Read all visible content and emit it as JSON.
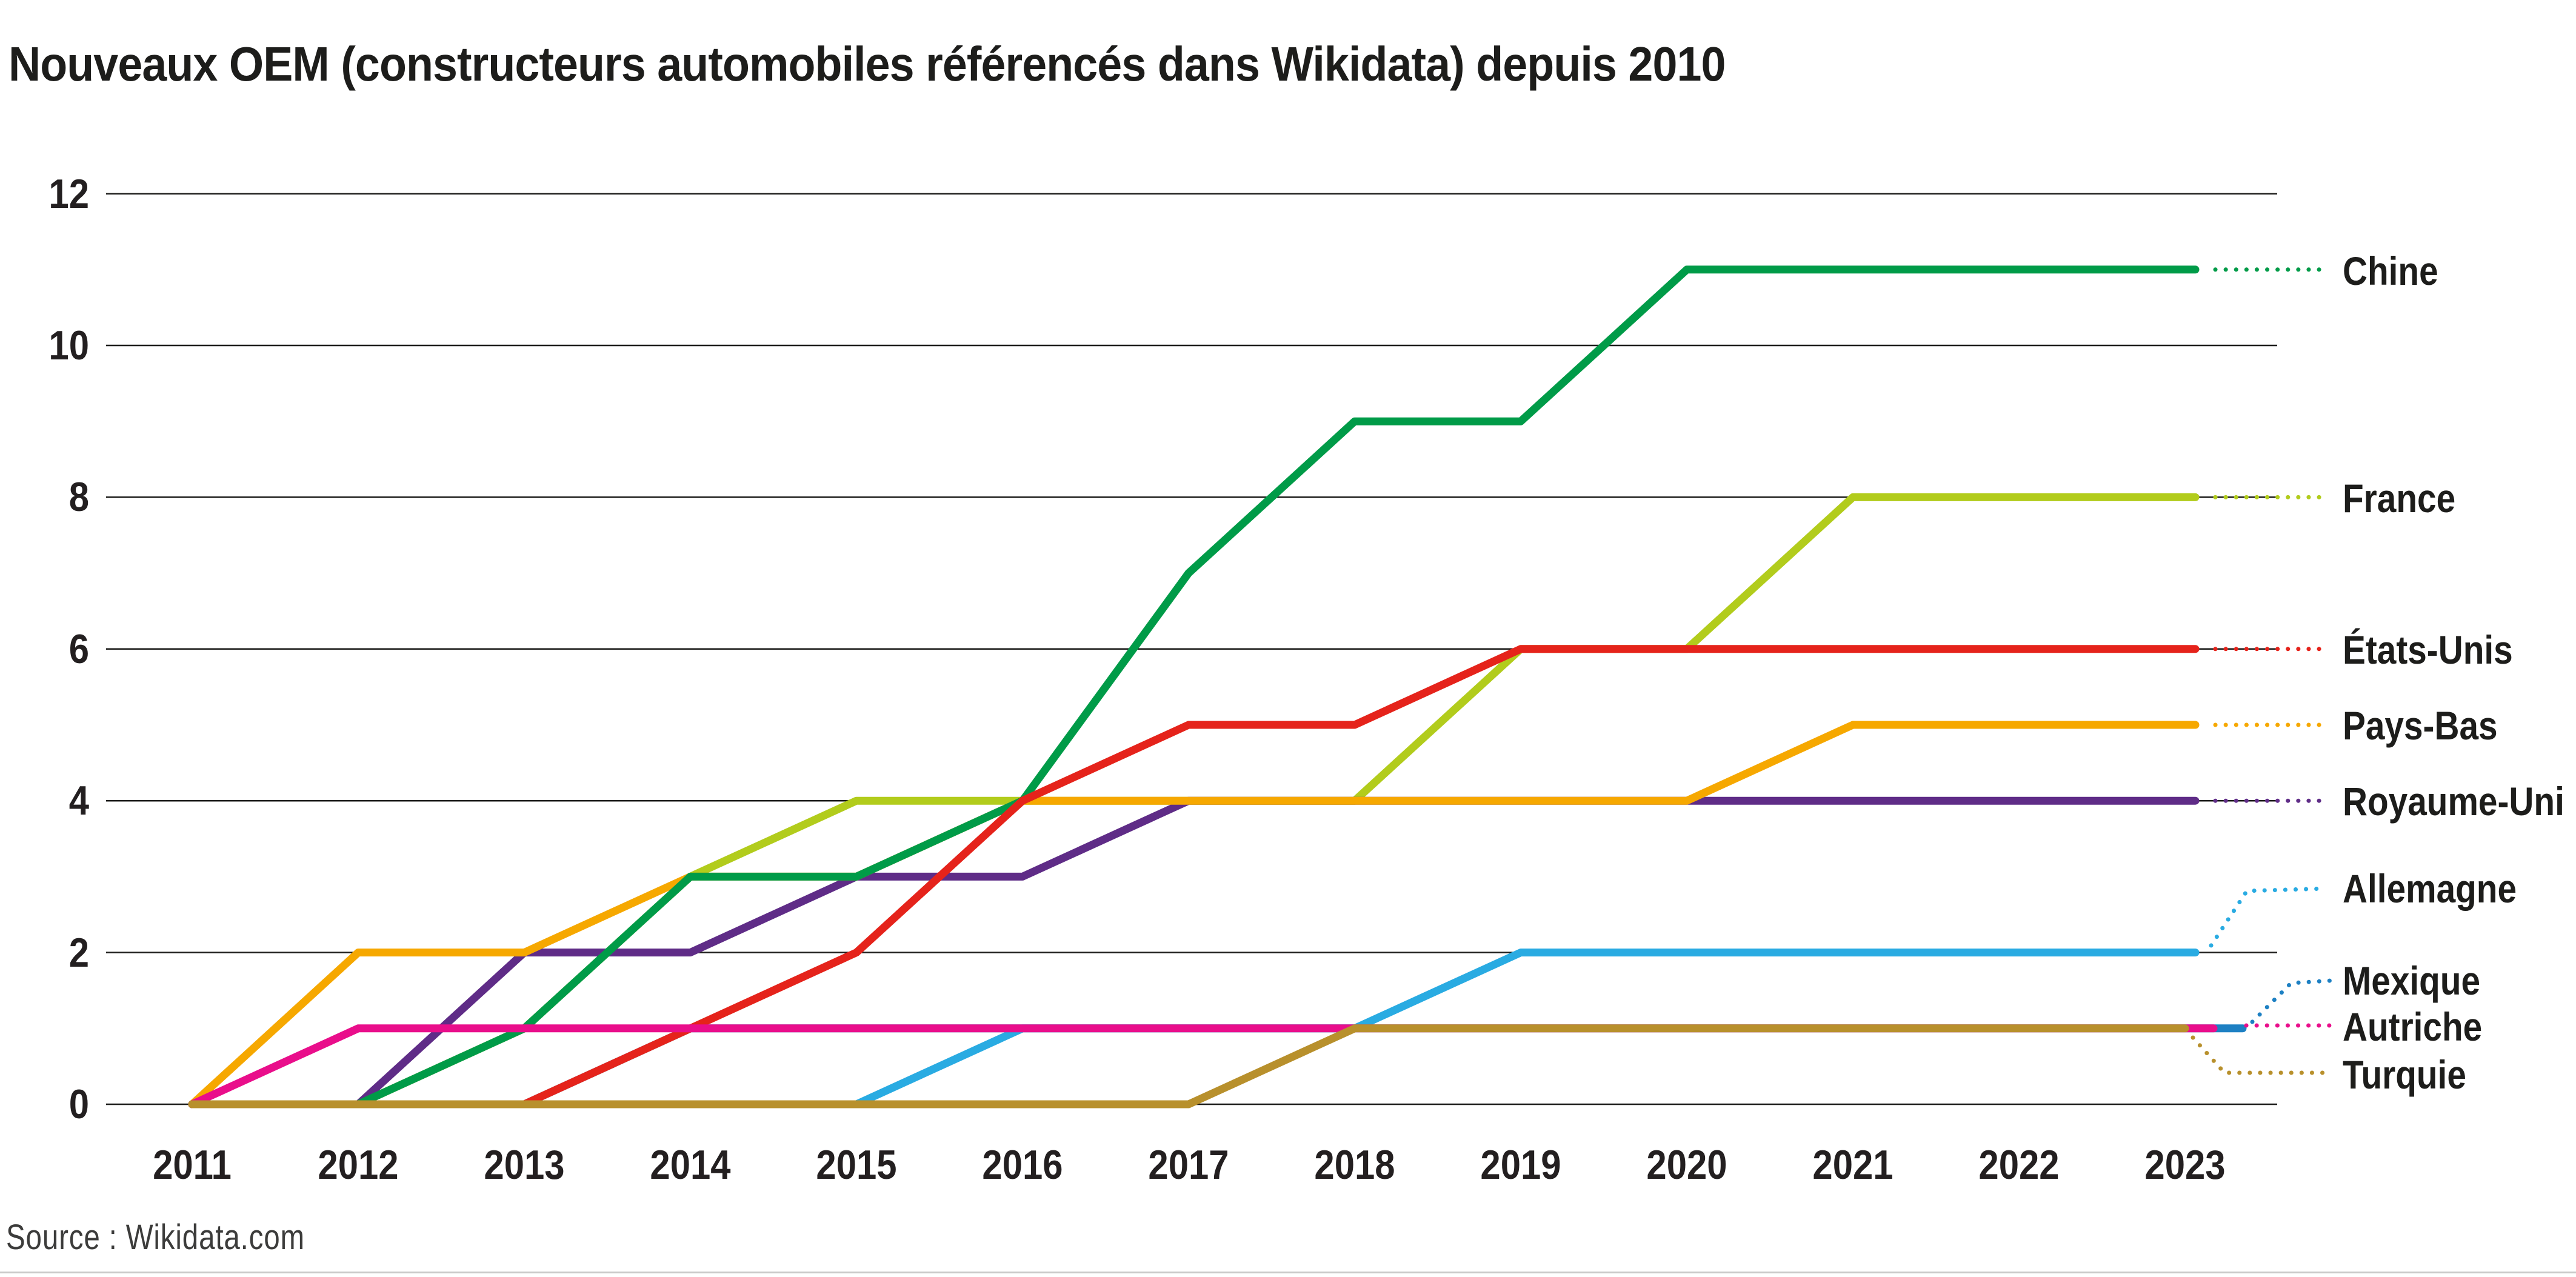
{
  "title": "Nouveaux OEM (constructeurs automobiles référencés dans Wikidata) depuis 2010",
  "source": "Source : Wikidata.com",
  "text_color": "#1d1d1b",
  "grid_color": "#1d1d1b",
  "background_color": "#ffffff",
  "chart_data": {
    "type": "line",
    "title": "Nouveaux OEM (constructeurs automobiles référencés dans Wikidata) depuis 2010",
    "x": [
      2011,
      2012,
      2013,
      2014,
      2015,
      2016,
      2017,
      2018,
      2019,
      2020,
      2021,
      2022,
      2023
    ],
    "x_tick_labels": [
      "2011",
      "2012",
      "2013",
      "2014",
      "2015",
      "2016",
      "2017",
      "2018",
      "2019",
      "2020",
      "2021",
      "2022",
      "2023"
    ],
    "y_ticks": [
      0,
      2,
      4,
      6,
      8,
      10,
      12
    ],
    "ylim": [
      0,
      12
    ],
    "grid": "horizontal",
    "legend_position": "right-of-line-ends-with-dotted-leaders",
    "series": [
      {
        "name": "Chine",
        "color": "#009b48",
        "values": [
          0,
          0,
          1,
          3,
          3,
          4,
          7,
          9,
          9,
          11,
          11,
          11,
          11
        ]
      },
      {
        "name": "France",
        "color": "#b2cc1c",
        "values": [
          0,
          0,
          1,
          3,
          4,
          4,
          4,
          4,
          6,
          6,
          8,
          8,
          8
        ]
      },
      {
        "name": "États-Unis",
        "color": "#e5231b",
        "values": [
          0,
          0,
          0,
          1,
          2,
          4,
          5,
          5,
          6,
          6,
          6,
          6,
          6
        ]
      },
      {
        "name": "Pays-Bas",
        "color": "#f6a800",
        "values": [
          0,
          2,
          2,
          3,
          3,
          4,
          4,
          4,
          4,
          4,
          5,
          5,
          5
        ]
      },
      {
        "name": "Royaume-Uni",
        "color": "#5f2c87",
        "values": [
          0,
          0,
          2,
          2,
          3,
          3,
          4,
          4,
          4,
          4,
          4,
          4,
          4
        ]
      },
      {
        "name": "Allemagne",
        "color": "#29abe2",
        "values": [
          0,
          0,
          0,
          0,
          0,
          1,
          1,
          1,
          2,
          2,
          2,
          2,
          2
        ]
      },
      {
        "name": "Mexique",
        "color": "#1d80c3",
        "values": [
          0,
          0,
          0,
          1,
          1,
          1,
          1,
          1,
          1,
          1,
          1,
          1,
          1
        ]
      },
      {
        "name": "Autriche",
        "color": "#e90e8b",
        "values": [
          0,
          1,
          1,
          1,
          1,
          1,
          1,
          1,
          1,
          1,
          1,
          1,
          1
        ]
      },
      {
        "name": "Turquie",
        "color": "#b8902c",
        "values": [
          0,
          0,
          0,
          0,
          0,
          0,
          0,
          1,
          1,
          1,
          1,
          1,
          1
        ]
      }
    ]
  }
}
